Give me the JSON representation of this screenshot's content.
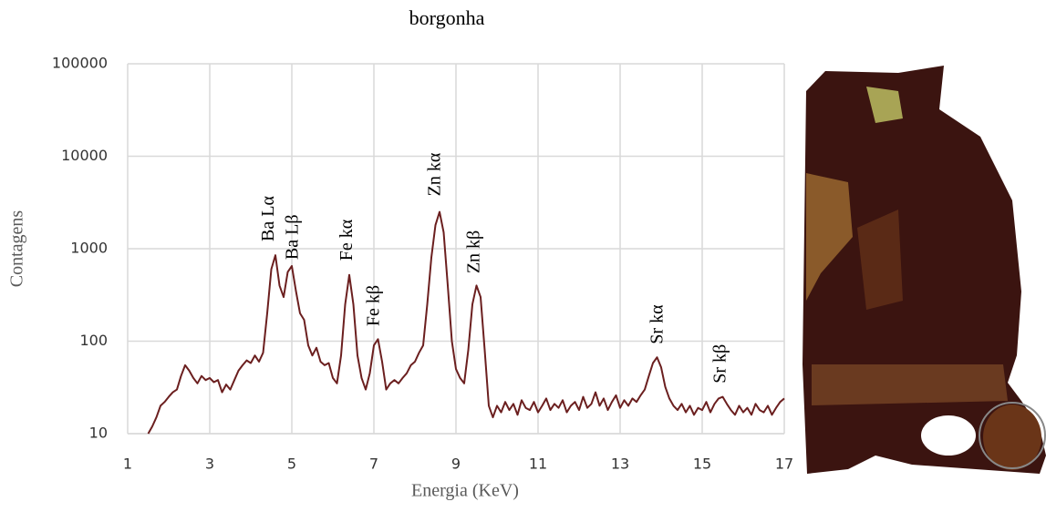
{
  "chart_data": {
    "type": "line",
    "title": "borgonha",
    "xlabel": "Energia (KeV)",
    "ylabel": "Contagens",
    "log_y": true,
    "grid": true,
    "color": "#6b1f1f",
    "xlim": [
      1,
      17
    ],
    "xticks": [
      1,
      3,
      5,
      7,
      9,
      11,
      13,
      15,
      17
    ],
    "ylim": [
      10,
      100000
    ],
    "yticks": [
      10,
      100,
      1000,
      10000,
      100000
    ],
    "x": [
      1.5,
      1.6,
      1.7,
      1.8,
      1.9,
      2.0,
      2.1,
      2.2,
      2.3,
      2.4,
      2.5,
      2.6,
      2.7,
      2.8,
      2.9,
      3.0,
      3.1,
      3.2,
      3.3,
      3.4,
      3.5,
      3.6,
      3.7,
      3.8,
      3.9,
      4.0,
      4.1,
      4.2,
      4.3,
      4.4,
      4.5,
      4.6,
      4.7,
      4.8,
      4.9,
      5.0,
      5.1,
      5.2,
      5.3,
      5.4,
      5.5,
      5.6,
      5.7,
      5.8,
      5.9,
      6.0,
      6.1,
      6.2,
      6.3,
      6.4,
      6.5,
      6.6,
      6.7,
      6.8,
      6.9,
      7.0,
      7.1,
      7.2,
      7.3,
      7.4,
      7.5,
      7.6,
      7.7,
      7.8,
      7.9,
      8.0,
      8.1,
      8.2,
      8.3,
      8.4,
      8.5,
      8.6,
      8.7,
      8.8,
      8.9,
      9.0,
      9.1,
      9.2,
      9.3,
      9.4,
      9.5,
      9.6,
      9.7,
      9.8,
      9.9,
      10.0,
      10.1,
      10.2,
      10.3,
      10.4,
      10.5,
      10.6,
      10.7,
      10.8,
      10.9,
      11.0,
      11.1,
      11.2,
      11.3,
      11.4,
      11.5,
      11.6,
      11.7,
      11.8,
      11.9,
      12.0,
      12.1,
      12.2,
      12.3,
      12.4,
      12.5,
      12.6,
      12.7,
      12.8,
      12.9,
      13.0,
      13.1,
      13.2,
      13.3,
      13.4,
      13.5,
      13.6,
      13.7,
      13.8,
      13.9,
      14.0,
      14.1,
      14.2,
      14.3,
      14.4,
      14.5,
      14.6,
      14.7,
      14.8,
      14.9,
      15.0,
      15.1,
      15.2,
      15.3,
      15.4,
      15.5,
      15.6,
      15.7,
      15.8,
      15.9,
      16.0,
      16.1,
      16.2,
      16.3,
      16.4,
      16.5,
      16.6,
      16.7,
      16.8,
      16.9,
      17.0
    ],
    "values": [
      10,
      12,
      15,
      20,
      22,
      25,
      28,
      30,
      42,
      55,
      48,
      40,
      35,
      42,
      38,
      40,
      36,
      38,
      28,
      34,
      30,
      38,
      48,
      55,
      62,
      58,
      70,
      60,
      75,
      200,
      600,
      850,
      400,
      300,
      560,
      650,
      350,
      200,
      170,
      90,
      70,
      85,
      60,
      55,
      58,
      40,
      35,
      70,
      250,
      520,
      250,
      70,
      40,
      30,
      45,
      90,
      105,
      60,
      30,
      35,
      38,
      35,
      40,
      45,
      55,
      60,
      75,
      90,
      250,
      800,
      1800,
      2500,
      1500,
      400,
      100,
      50,
      40,
      35,
      80,
      250,
      400,
      300,
      80,
      20,
      15,
      20,
      17,
      22,
      18,
      21,
      16,
      23,
      19,
      18,
      22,
      17,
      20,
      24,
      18,
      21,
      19,
      23,
      17,
      20,
      22,
      18,
      25,
      19,
      21,
      28,
      20,
      24,
      18,
      22,
      26,
      19,
      23,
      20,
      24,
      22,
      26,
      30,
      42,
      58,
      67,
      52,
      32,
      24,
      20,
      18,
      21,
      17,
      20,
      16,
      19,
      18,
      22,
      17,
      21,
      24,
      25,
      21,
      18,
      16,
      20,
      17,
      19,
      16,
      21,
      18,
      17,
      20,
      16,
      19,
      22,
      24
    ],
    "annotations": [
      {
        "text": "Ba Lα",
        "x": 4.45,
        "y": 1200
      },
      {
        "text": "Ba Lβ",
        "x": 5.04,
        "y": 760
      },
      {
        "text": "Fe kα",
        "x": 6.36,
        "y": 740
      },
      {
        "text": "Fe kβ",
        "x": 7.02,
        "y": 145
      },
      {
        "text": "Zn kα",
        "x": 8.51,
        "y": 3700
      },
      {
        "text": "Zn kβ",
        "x": 9.47,
        "y": 540
      },
      {
        "text": "Sr kα",
        "x": 13.93,
        "y": 93
      },
      {
        "text": "Sr kβ",
        "x": 15.47,
        "y": 35
      }
    ]
  }
}
